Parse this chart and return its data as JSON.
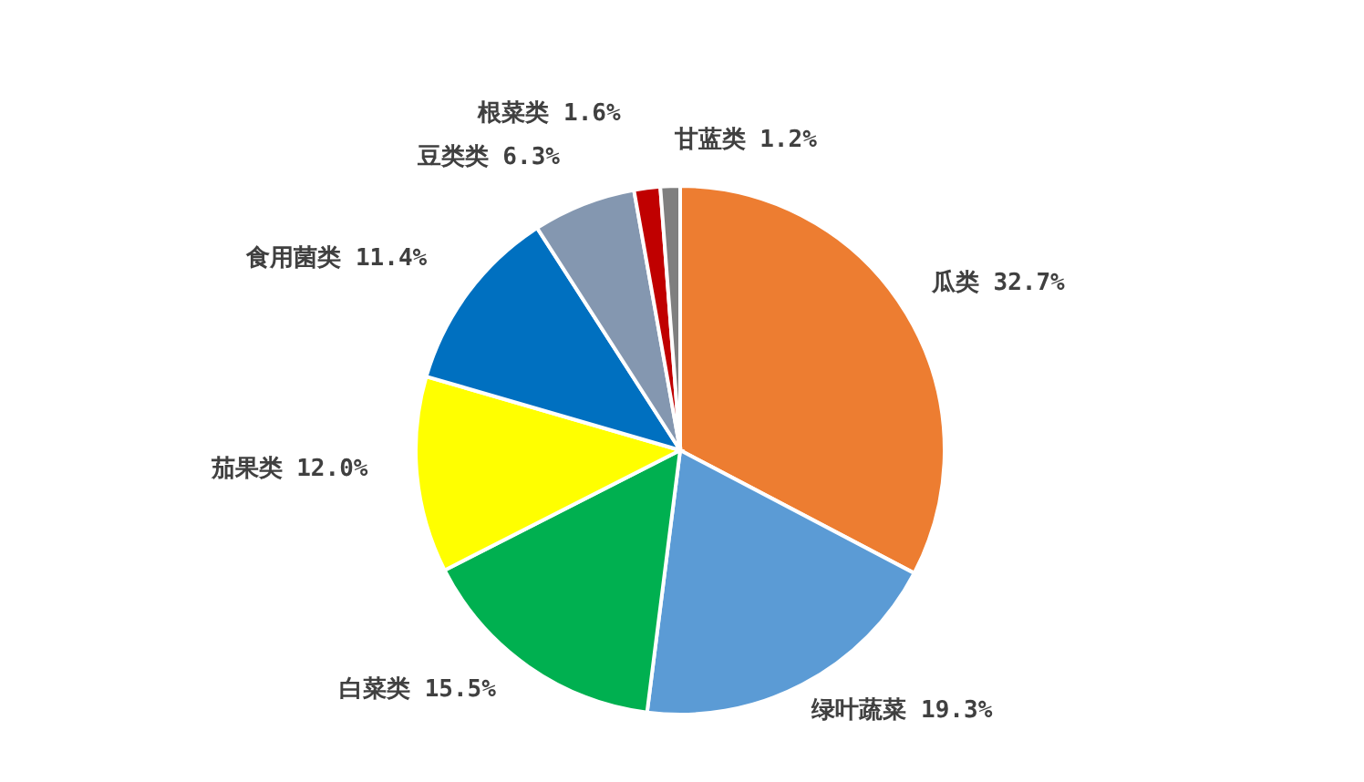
{
  "chart_data": {
    "type": "pie",
    "categories": [
      "瓜类",
      "绿叶蔬菜",
      "白菜类",
      "茄果类",
      "食用菌类",
      "豆类类",
      "根菜类",
      "甘蓝类"
    ],
    "values": [
      32.7,
      19.3,
      15.5,
      12.0,
      11.4,
      6.3,
      1.6,
      1.2
    ],
    "value_labels": [
      "32.7%",
      "19.3%",
      "15.5%",
      "12.0%",
      "11.4%",
      "6.3%",
      "1.6%",
      "1.2%"
    ],
    "colors": [
      "#ed7d31",
      "#5b9bd5",
      "#00b050",
      "#ffff00",
      "#0070c0",
      "#8497b0",
      "#c00000",
      "#7f7f7f"
    ],
    "legend": false
  }
}
